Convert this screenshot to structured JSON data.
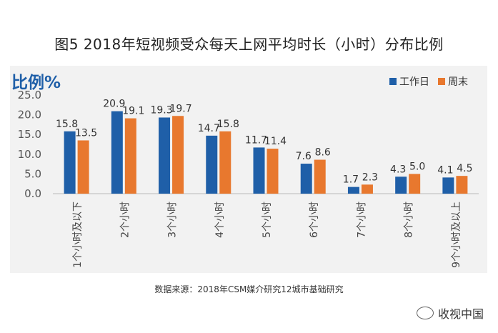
{
  "title": "图5  2018年短视频受众每天上网平均时长（小时）分布比例",
  "source": "数据来源：2018年CSM媒介研究12城市基础研究",
  "brand": "收视中国",
  "chart_data": {
    "type": "bar",
    "ylabel": "比例%",
    "ylim": [
      0,
      25
    ],
    "yticks": [
      "0.0",
      "5.0",
      "10.0",
      "15.0",
      "20.0",
      "25.0"
    ],
    "categories": [
      "1个小时及以下",
      "2个小时",
      "3个小时",
      "4个小时",
      "5个小时",
      "6个小时",
      "7个小时",
      "8个小时",
      "9个小时及以上"
    ],
    "series": [
      {
        "name": "工作日",
        "color": "#1f5fa8",
        "values": [
          15.8,
          20.9,
          19.3,
          14.7,
          11.7,
          7.6,
          1.7,
          4.3,
          4.1
        ]
      },
      {
        "name": "周末",
        "color": "#e8782e",
        "values": [
          13.5,
          19.1,
          19.7,
          15.8,
          11.4,
          8.6,
          2.3,
          5.0,
          4.5
        ]
      }
    ],
    "legend": "top-right",
    "grid": false
  }
}
